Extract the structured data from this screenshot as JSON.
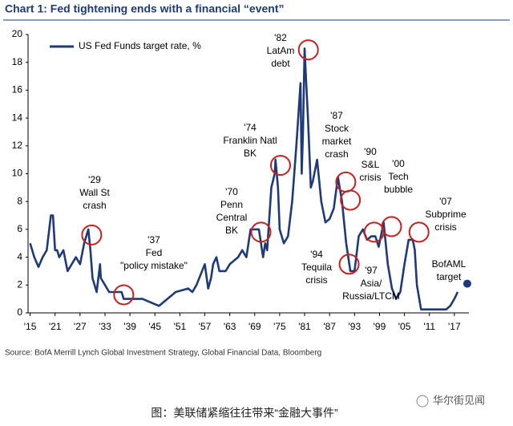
{
  "chart_data": {
    "type": "line",
    "title": "Chart 1: Fed tightening ends with a financial “event”",
    "source": "Source:  BofA Merrill Lynch Global Investment Strategy, Global Financial Data, Bloomberg",
    "caption": "图：美联储紧缩往往带来“金融大事件”",
    "watermark": "华尔街见闻",
    "xlim": [
      1914.5,
      2020.5
    ],
    "ylim": [
      0,
      20
    ],
    "yticks": [
      0,
      2,
      4,
      6,
      8,
      10,
      12,
      14,
      16,
      18,
      20
    ],
    "xticks": [
      {
        "value": 1915,
        "label": "'15"
      },
      {
        "value": 1921,
        "label": "'21"
      },
      {
        "value": 1927,
        "label": "'27"
      },
      {
        "value": 1933,
        "label": "'33"
      },
      {
        "value": 1939,
        "label": "'39"
      },
      {
        "value": 1945,
        "label": "'45"
      },
      {
        "value": 1951,
        "label": "'51"
      },
      {
        "value": 1957,
        "label": "'57"
      },
      {
        "value": 1963,
        "label": "'63"
      },
      {
        "value": 1969,
        "label": "'69"
      },
      {
        "value": 1975,
        "label": "'75"
      },
      {
        "value": 1981,
        "label": "'81"
      },
      {
        "value": 1987,
        "label": "'87"
      },
      {
        "value": 1993,
        "label": "'93"
      },
      {
        "value": 1999,
        "label": "'99"
      },
      {
        "value": 2005,
        "label": "'05"
      },
      {
        "value": 2011,
        "label": "'11"
      },
      {
        "value": 2017,
        "label": "'17"
      }
    ],
    "legend": "top-left",
    "x": [
      1915,
      1916,
      1917,
      1918,
      1919,
      1920,
      1920.5,
      1921,
      1921.5,
      1922,
      1923,
      1924,
      1925,
      1926,
      1927,
      1928,
      1929,
      1929.5,
      1930,
      1931,
      1931.8,
      1932,
      1933,
      1934,
      1937,
      1937.5,
      1942,
      1946,
      1948,
      1950,
      1953,
      1954,
      1955,
      1956,
      1957,
      1957.8,
      1958.5,
      1959,
      1959.8,
      1960.5,
      1962,
      1963,
      1965,
      1966,
      1967,
      1968,
      1969,
      1970,
      1971,
      1971.5,
      1972,
      1973,
      1973.8,
      1974,
      1974.6,
      1975,
      1976,
      1977,
      1978,
      1979,
      1980,
      1980.3,
      1980.6,
      1981,
      1981.3,
      1981.8,
      1982.5,
      1983,
      1984,
      1985,
      1986,
      1987,
      1988,
      1989,
      1990,
      1991,
      1992,
      1993,
      1994,
      1995,
      1996,
      1997,
      1998,
      1998.8,
      1999,
      2000,
      2001,
      2002,
      2003,
      2004,
      2005,
      2006,
      2007,
      2007.5,
      2008,
      2009,
      2012,
      2015,
      2016,
      2017,
      2017.8
    ],
    "series": [
      {
        "name": "US Fed Funds target rate, %",
        "color": "#1f3a78",
        "values": [
          5,
          4,
          3.3,
          4,
          4.5,
          7,
          7,
          4.5,
          4.5,
          4,
          4.5,
          3,
          3.5,
          4,
          3.5,
          5,
          6,
          4.5,
          2.5,
          1.5,
          3.5,
          2.5,
          2,
          1.5,
          1.5,
          1,
          1,
          0.5,
          1,
          1.5,
          1.75,
          1.5,
          2,
          2.75,
          3.5,
          1.75,
          2.5,
          3.5,
          4,
          3,
          3,
          3.5,
          4,
          4.5,
          4,
          6,
          6,
          6,
          4,
          5,
          4.5,
          9,
          10,
          11,
          9,
          6,
          5,
          5.5,
          8,
          12,
          16.5,
          10,
          13,
          19,
          17,
          14,
          9,
          9.5,
          11,
          8,
          6.5,
          6.75,
          7.5,
          9.75,
          8,
          5,
          3,
          3,
          5.5,
          6,
          5.25,
          5.5,
          5.5,
          4.75,
          5,
          6.5,
          3.5,
          1.75,
          1,
          1.5,
          3.5,
          5.25,
          5.25,
          4.5,
          2,
          0.25,
          0.25,
          0.25,
          0.5,
          1,
          1.5
        ]
      }
    ],
    "circle_color": "#c8201f",
    "annotations": [
      {
        "lines": [
          "'29",
          "Wall St",
          "crash"
        ],
        "points": [
          [
            1929.8,
            5.6
          ]
        ]
      },
      {
        "lines": [
          "'37",
          "Fed",
          "\"policy mistake\""
        ],
        "points": [
          [
            1937.5,
            1.3
          ]
        ]
      },
      {
        "lines": [
          "'70",
          "Penn",
          "Central",
          "BK"
        ],
        "points": [
          [
            1970.5,
            5.8
          ]
        ]
      },
      {
        "lines": [
          "'74",
          "Franklin Natl",
          "BK"
        ],
        "points": [
          [
            1975.2,
            10.6
          ]
        ]
      },
      {
        "lines": [
          "'82",
          "LatAm",
          "debt"
        ],
        "points": [
          [
            1981.9,
            18.9
          ]
        ]
      },
      {
        "lines": [
          "'87",
          "Stock",
          "market",
          "crash"
        ],
        "points": [
          [
            1990.9,
            9.4
          ],
          [
            1992,
            8.1
          ]
        ]
      },
      {
        "lines": [
          "'94",
          "Tequila",
          "crisis"
        ],
        "points": [
          [
            1991.7,
            3.5
          ]
        ]
      },
      {
        "lines": [
          "'97",
          "Asia/",
          "Russia/LTCM"
        ]
      },
      {
        "lines": [
          "'90",
          "S&L",
          "crisis"
        ],
        "points": [
          [
            1997.7,
            5.8
          ]
        ]
      },
      {
        "lines": [
          "'00",
          "Tech",
          "bubble"
        ],
        "points": [
          [
            2001.9,
            6.2
          ]
        ]
      },
      {
        "lines": [
          "'07",
          "Subprime",
          "crisis"
        ],
        "points": [
          [
            2008.5,
            5.8
          ]
        ]
      }
    ],
    "target": {
      "lines": [
        "BofAML",
        "target"
      ],
      "x": 2020.1,
      "y": 2.1
    }
  }
}
